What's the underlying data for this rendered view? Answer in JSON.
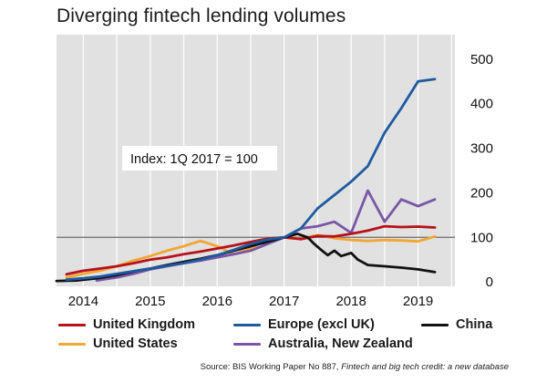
{
  "title": "Diverging fintech lending volumes",
  "source_prefix": "Source: BIS Working Paper No 887, ",
  "source_italic": "Fintech and big tech credit: a new database",
  "colors": {
    "United Kingdom": "#b5121b",
    "Europe (excl UK)": "#1e5aa0",
    "China": "#111111",
    "United States": "#f2a634",
    "Australia, New Zealand": "#7b55a7"
  },
  "chart_data": {
    "type": "line",
    "title": "Diverging fintech lending volumes",
    "annotation": "Index: 1Q 2017 = 100",
    "reference_line": 100,
    "xlim": [
      2013.6,
      2019.55
    ],
    "ylim": [
      -10,
      555
    ],
    "x_ticks": [
      2014,
      2015,
      2016,
      2017,
      2018,
      2019
    ],
    "y_ticks": [
      0,
      100,
      200,
      300,
      400,
      500
    ],
    "grid": "vertical",
    "legend": "bottom",
    "series": [
      {
        "name": "United Kingdom",
        "x": [
          2013.75,
          2014.0,
          2014.25,
          2014.5,
          2014.75,
          2015.0,
          2015.25,
          2015.5,
          2015.75,
          2016.0,
          2016.25,
          2016.5,
          2016.75,
          2017.0,
          2017.25,
          2017.5,
          2017.75,
          2018.0,
          2018.25,
          2018.5,
          2018.75,
          2019.0,
          2019.25
        ],
        "y": [
          17,
          25,
          30,
          35,
          42,
          50,
          55,
          62,
          68,
          75,
          82,
          90,
          97,
          100,
          96,
          103,
          102,
          108,
          115,
          125,
          123,
          124,
          122
        ]
      },
      {
        "name": "Europe (excl UK)",
        "x": [
          2013.75,
          2014.0,
          2014.25,
          2014.5,
          2014.75,
          2015.0,
          2015.25,
          2015.5,
          2015.75,
          2016.0,
          2016.25,
          2016.5,
          2016.75,
          2017.0,
          2017.25,
          2017.5,
          2017.75,
          2018.0,
          2018.25,
          2018.5,
          2018.75,
          2019.0,
          2019.25
        ],
        "y": [
          5,
          8,
          12,
          18,
          24,
          30,
          36,
          42,
          50,
          60,
          72,
          85,
          95,
          100,
          120,
          165,
          195,
          225,
          260,
          335,
          390,
          450,
          455
        ]
      },
      {
        "name": "China",
        "x": [
          2013.6,
          2013.9,
          2014.2,
          2014.5,
          2014.8,
          2015.0,
          2015.25,
          2015.5,
          2015.75,
          2016.0,
          2016.25,
          2016.5,
          2016.75,
          2017.0,
          2017.2,
          2017.35,
          2017.45,
          2017.55,
          2017.65,
          2017.75,
          2017.85,
          2018.0,
          2018.1,
          2018.25,
          2018.5,
          2018.75,
          2019.0,
          2019.25
        ],
        "y": [
          2,
          3,
          8,
          15,
          25,
          30,
          38,
          45,
          52,
          60,
          70,
          80,
          90,
          100,
          108,
          100,
          85,
          72,
          60,
          70,
          58,
          65,
          50,
          38,
          35,
          32,
          28,
          22
        ]
      },
      {
        "name": "United States",
        "x": [
          2013.75,
          2014.0,
          2014.25,
          2014.5,
          2014.75,
          2015.0,
          2015.25,
          2015.5,
          2015.75,
          2016.0,
          2016.25,
          2016.5,
          2016.75,
          2017.0,
          2017.25,
          2017.5,
          2017.75,
          2018.0,
          2018.25,
          2018.5,
          2018.75,
          2019.0,
          2019.25
        ],
        "y": [
          10,
          18,
          25,
          35,
          48,
          58,
          70,
          80,
          92,
          80,
          62,
          75,
          95,
          100,
          97,
          105,
          98,
          94,
          92,
          94,
          93,
          91,
          102
        ]
      },
      {
        "name": "Australia, New Zealand",
        "x": [
          2014.2,
          2014.5,
          2014.75,
          2015.0,
          2015.25,
          2015.5,
          2015.75,
          2016.0,
          2016.25,
          2016.5,
          2016.75,
          2017.0,
          2017.25,
          2017.5,
          2017.75,
          2018.0,
          2018.25,
          2018.5,
          2018.75,
          2019.0,
          2019.25
        ],
        "y": [
          3,
          10,
          18,
          28,
          35,
          42,
          48,
          55,
          62,
          70,
          85,
          100,
          120,
          125,
          135,
          110,
          205,
          135,
          185,
          170,
          185
        ]
      }
    ]
  },
  "legend_rows": [
    [
      "United Kingdom",
      "Europe (excl UK)",
      "China"
    ],
    [
      "United States",
      "Australia, New Zealand"
    ]
  ]
}
